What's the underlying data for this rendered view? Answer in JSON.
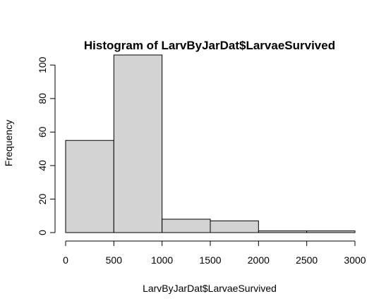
{
  "chart_data": {
    "type": "bar",
    "title": "Histogram of LarvByJarDat$LarvaeSurvived",
    "xlabel": "LarvByJarDat$LarvaeSurvived",
    "ylabel": "Frequency",
    "bins": [
      {
        "start": 0,
        "end": 500,
        "count": 55
      },
      {
        "start": 500,
        "end": 1000,
        "count": 106
      },
      {
        "start": 1000,
        "end": 1500,
        "count": 8
      },
      {
        "start": 1500,
        "end": 2000,
        "count": 7
      },
      {
        "start": 2000,
        "end": 2500,
        "count": 1
      },
      {
        "start": 2500,
        "end": 3000,
        "count": 1
      }
    ],
    "xlim": [
      0,
      3000
    ],
    "ylim": [
      0,
      106
    ],
    "x_ticks": [
      0,
      500,
      1000,
      1500,
      2000,
      2500,
      3000
    ],
    "y_ticks": [
      0,
      20,
      40,
      60,
      80,
      100
    ],
    "bar_color": "#d3d3d3",
    "grid": false
  }
}
